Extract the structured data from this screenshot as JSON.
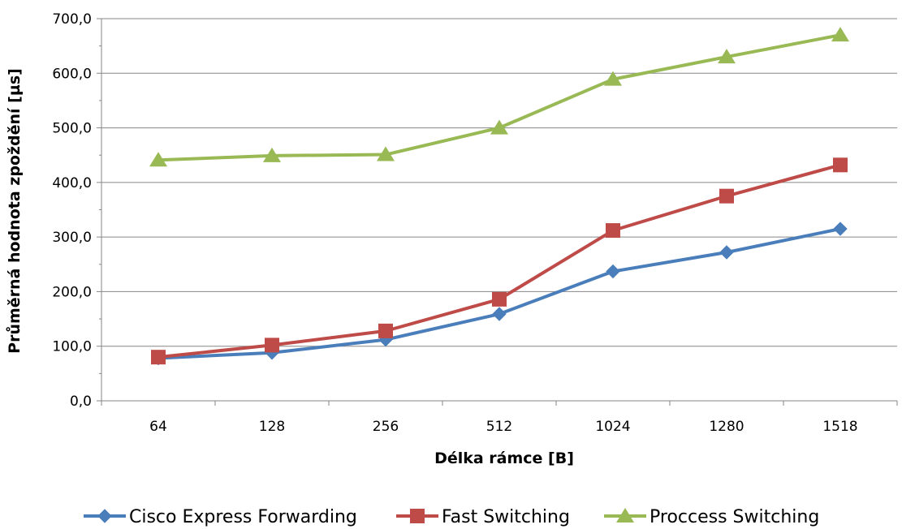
{
  "chart_data": {
    "type": "line",
    "categories": [
      "64",
      "128",
      "256",
      "512",
      "1024",
      "1280",
      "1518"
    ],
    "xlabel": "Délka rámce [B]",
    "ylabel": "Průměrná hodnota zpoždění [µs]",
    "ylim": [
      0,
      700
    ],
    "y_ticks": [
      "0,0",
      "100,0",
      "200,0",
      "300,0",
      "400,0",
      "500,0",
      "600,0",
      "700,0"
    ],
    "grid": "horizontal",
    "legend_position": "bottom",
    "series": [
      {
        "name": "Cisco Express Forwarding",
        "marker": "diamond",
        "color": "#4a7ebb",
        "values": [
          78,
          88,
          112,
          159,
          237,
          272,
          315
        ]
      },
      {
        "name": "Fast Switching",
        "marker": "square",
        "color": "#be4b48",
        "values": [
          80,
          102,
          128,
          186,
          312,
          375,
          432
        ]
      },
      {
        "name": "Proccess Switching",
        "marker": "triangle",
        "color": "#98b954",
        "values": [
          441,
          449,
          451,
          500,
          589,
          630,
          670
        ]
      }
    ]
  }
}
